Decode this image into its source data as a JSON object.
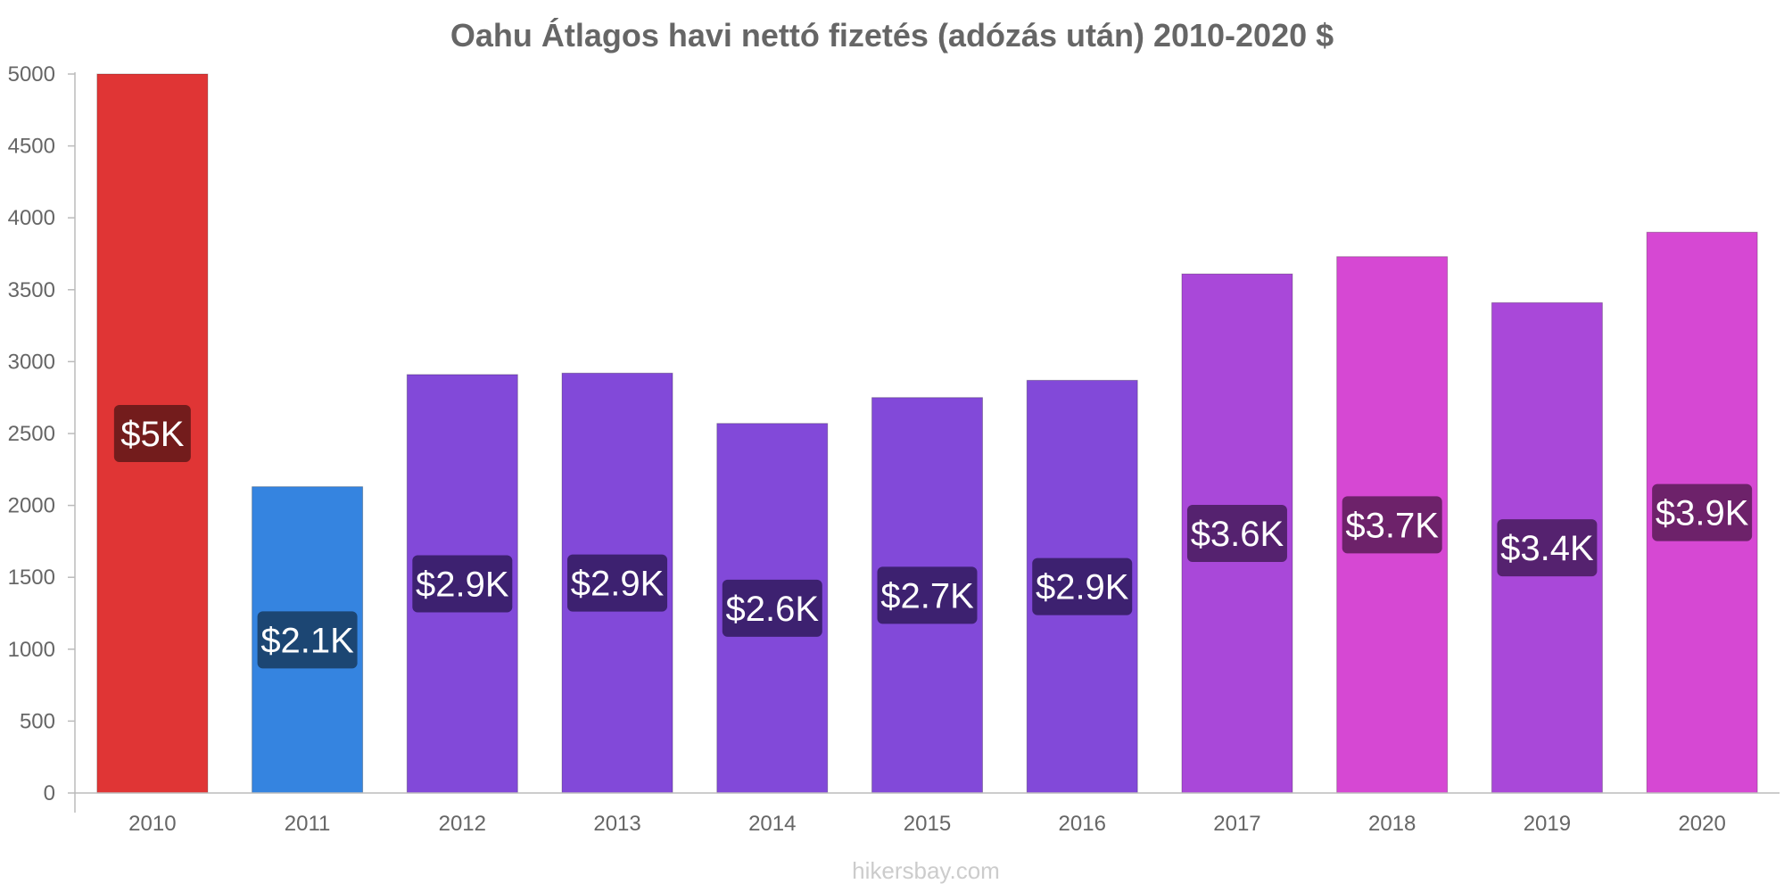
{
  "chart_data": {
    "type": "bar",
    "title": "Oahu Átlagos havi nettó fizetés (adózás után) 2010-2020 $",
    "xlabel": "",
    "ylabel": "",
    "categories": [
      "2010",
      "2011",
      "2012",
      "2013",
      "2014",
      "2015",
      "2016",
      "2017",
      "2018",
      "2019",
      "2020"
    ],
    "values": [
      5000,
      2130,
      2910,
      2920,
      2570,
      2750,
      2870,
      3610,
      3730,
      3410,
      3900
    ],
    "data_labels": [
      "$5K",
      "$2.1K",
      "$2.9K",
      "$2.9K",
      "$2.6K",
      "$2.7K",
      "$2.9K",
      "$3.6K",
      "$3.7K",
      "$3.4K",
      "$3.9K"
    ],
    "bar_colors": [
      "#e03535",
      "#3584e0",
      "#8249d9",
      "#8249d9",
      "#8249d9",
      "#8249d9",
      "#8249d9",
      "#a948d9",
      "#d648d3",
      "#a948d9",
      "#d648d3"
    ],
    "label_bg_colors": [
      "#731c1c",
      "#1c4673",
      "#3d2170",
      "#3d2170",
      "#3d2170",
      "#3d2170",
      "#3d2170",
      "#55226f",
      "#6d226a",
      "#55226f",
      "#6d226a"
    ],
    "yticks": [
      "0",
      "500",
      "1000",
      "1500",
      "2000",
      "2500",
      "3000",
      "3500",
      "4000",
      "4500",
      "5000"
    ],
    "ylim": [
      0,
      5000
    ],
    "grid": false,
    "legend": "none"
  },
  "watermark": "hikersbay.com"
}
